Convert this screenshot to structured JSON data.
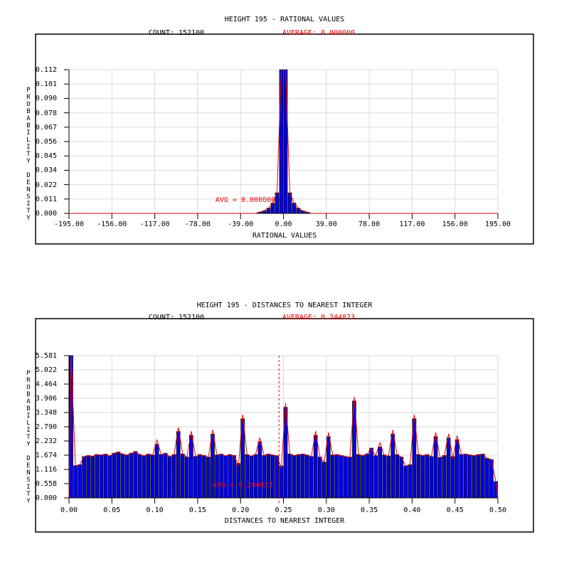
{
  "colors": {
    "background": "#ffffff",
    "bar_fill": "#0000ee",
    "bar_stroke": "#000000",
    "curve_red": "#ee0000",
    "grid_gray": "#d9d9d9",
    "axis_black": "#000000"
  },
  "chart_data": [
    {
      "type": "bar",
      "title": "HEIGHT 195 - RATIONAL VALUES",
      "count_label": "COUNT: 152100",
      "average_label": "AVERAGE: 0.000000",
      "avg_annotation": "AVG = 0.000000",
      "xlabel": "RATIONAL VALUES",
      "ylabel": "PROBABILITY DENSITY",
      "xlim": [
        -195,
        195
      ],
      "ylim": [
        0,
        0.112
      ],
      "xticks": [
        "-195.00",
        "-156.00",
        "-117.00",
        "-78.00",
        "-39.00",
        "0.00",
        "39.00",
        "78.00",
        "117.00",
        "156.00",
        "195.00"
      ],
      "yticks": [
        "0.000",
        "0.011",
        "0.022",
        "0.034",
        "0.045",
        "0.056",
        "0.067",
        "0.078",
        "0.090",
        "0.101",
        "0.112"
      ],
      "bin_width": 3.9,
      "bars": [
        [
          -23.4,
          0.001
        ],
        [
          -19.5,
          0.002
        ],
        [
          -15.6,
          0.004
        ],
        [
          -11.7,
          0.008
        ],
        [
          -7.8,
          0.016
        ],
        [
          -3.9,
          0.112
        ],
        [
          0,
          0.112
        ],
        [
          3.9,
          0.016
        ],
        [
          7.8,
          0.008
        ],
        [
          11.7,
          0.004
        ],
        [
          15.6,
          0.002
        ],
        [
          19.5,
          0.001
        ]
      ],
      "avg_value": 0.0,
      "grid": true,
      "legend": null,
      "curve_overshoot": false
    },
    {
      "type": "bar",
      "title": "HEIGHT 195 - DISTANCES TO NEAREST INTEGER",
      "count_label": "COUNT: 152100",
      "average_label": "AVERAGE: 0.244823",
      "avg_annotation": "AVG = 0.244823",
      "xlabel": "DISTANCES TO NEAREST INTEGER",
      "ylabel": "PROBABILITY DENSITY",
      "xlim": [
        0,
        0.5
      ],
      "ylim": [
        0,
        5.581
      ],
      "xticks": [
        "0.00",
        "0.05",
        "0.10",
        "0.15",
        "0.20",
        "0.25",
        "0.30",
        "0.35",
        "0.40",
        "0.45",
        "0.50"
      ],
      "yticks": [
        "0.000",
        "0.558",
        "1.116",
        "1.674",
        "2.232",
        "2.790",
        "3.348",
        "3.906",
        "4.464",
        "5.022",
        "5.581"
      ],
      "bin_width": 0.005,
      "x_start": 0,
      "values": [
        5.581,
        1.26,
        1.3,
        1.62,
        1.66,
        1.63,
        1.7,
        1.68,
        1.72,
        1.65,
        1.75,
        1.8,
        1.72,
        1.68,
        1.75,
        1.82,
        1.7,
        1.65,
        1.72,
        1.68,
        2.1,
        1.7,
        1.75,
        1.62,
        1.7,
        2.6,
        1.72,
        1.6,
        2.45,
        1.62,
        1.7,
        1.66,
        1.6,
        2.5,
        1.68,
        1.72,
        1.65,
        1.7,
        1.66,
        1.35,
        3.1,
        1.7,
        1.64,
        1.7,
        2.2,
        1.66,
        1.72,
        1.68,
        1.65,
        1.25,
        3.55,
        1.72,
        1.66,
        1.7,
        1.72,
        1.68,
        1.62,
        2.45,
        1.6,
        1.4,
        2.4,
        1.68,
        1.7,
        1.66,
        1.62,
        1.6,
        3.8,
        1.7,
        1.66,
        1.72,
        1.95,
        1.65,
        2.0,
        1.68,
        1.64,
        2.5,
        1.7,
        1.6,
        1.25,
        1.3,
        3.1,
        1.7,
        1.66,
        1.7,
        1.62,
        2.4,
        1.58,
        1.66,
        2.35,
        1.62,
        2.28,
        1.7,
        1.72,
        1.68,
        1.66,
        1.7,
        1.72,
        1.55,
        1.5,
        0.64
      ],
      "avg_value": 0.244823,
      "grid": true,
      "legend": null,
      "curve_overshoot": true
    }
  ]
}
